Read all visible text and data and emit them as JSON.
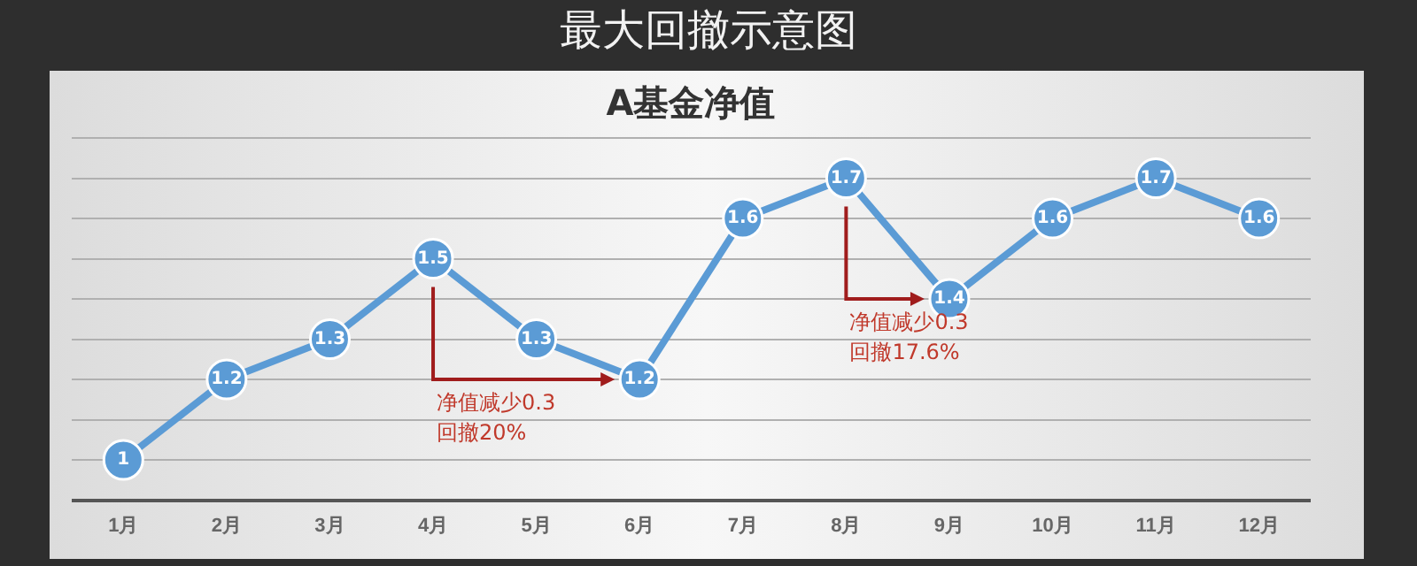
{
  "chart_data": {
    "type": "line",
    "title": "最大回撤示意图",
    "subtitle": "A基金净值",
    "categories": [
      "1月",
      "2月",
      "3月",
      "4月",
      "5月",
      "6月",
      "7月",
      "8月",
      "9月",
      "10月",
      "11月",
      "12月"
    ],
    "series": [
      {
        "color": "#5b9bd5",
        "values": [
          1,
          1.2,
          1.3,
          1.5,
          1.3,
          1.2,
          1.6,
          1.7,
          1.4,
          1.6,
          1.7,
          1.6
        ]
      }
    ],
    "ylim": [
      0.9,
      1.8
    ],
    "yticks": [
      {
        "value": 0.9,
        "label": null
      },
      {
        "value": 1.0,
        "label": null
      },
      {
        "value": 1.1,
        "label": null
      },
      {
        "value": 1.2,
        "label": null
      },
      {
        "value": 1.3,
        "label": null
      },
      {
        "value": 1.4,
        "label": null
      },
      {
        "value": 1.5,
        "label": null
      },
      {
        "value": 1.6,
        "label": null
      },
      {
        "value": 1.7,
        "label": null
      },
      {
        "value": 1.8,
        "label": null
      }
    ],
    "grid": "y",
    "tick_labels": "x",
    "marker": "circle",
    "line_style": "solid",
    "data_labels": true,
    "legend": false,
    "annotations": [
      "净值减少0.3\n回撤20%",
      "净值减少0.3\n回撤17.6%"
    ]
  }
}
